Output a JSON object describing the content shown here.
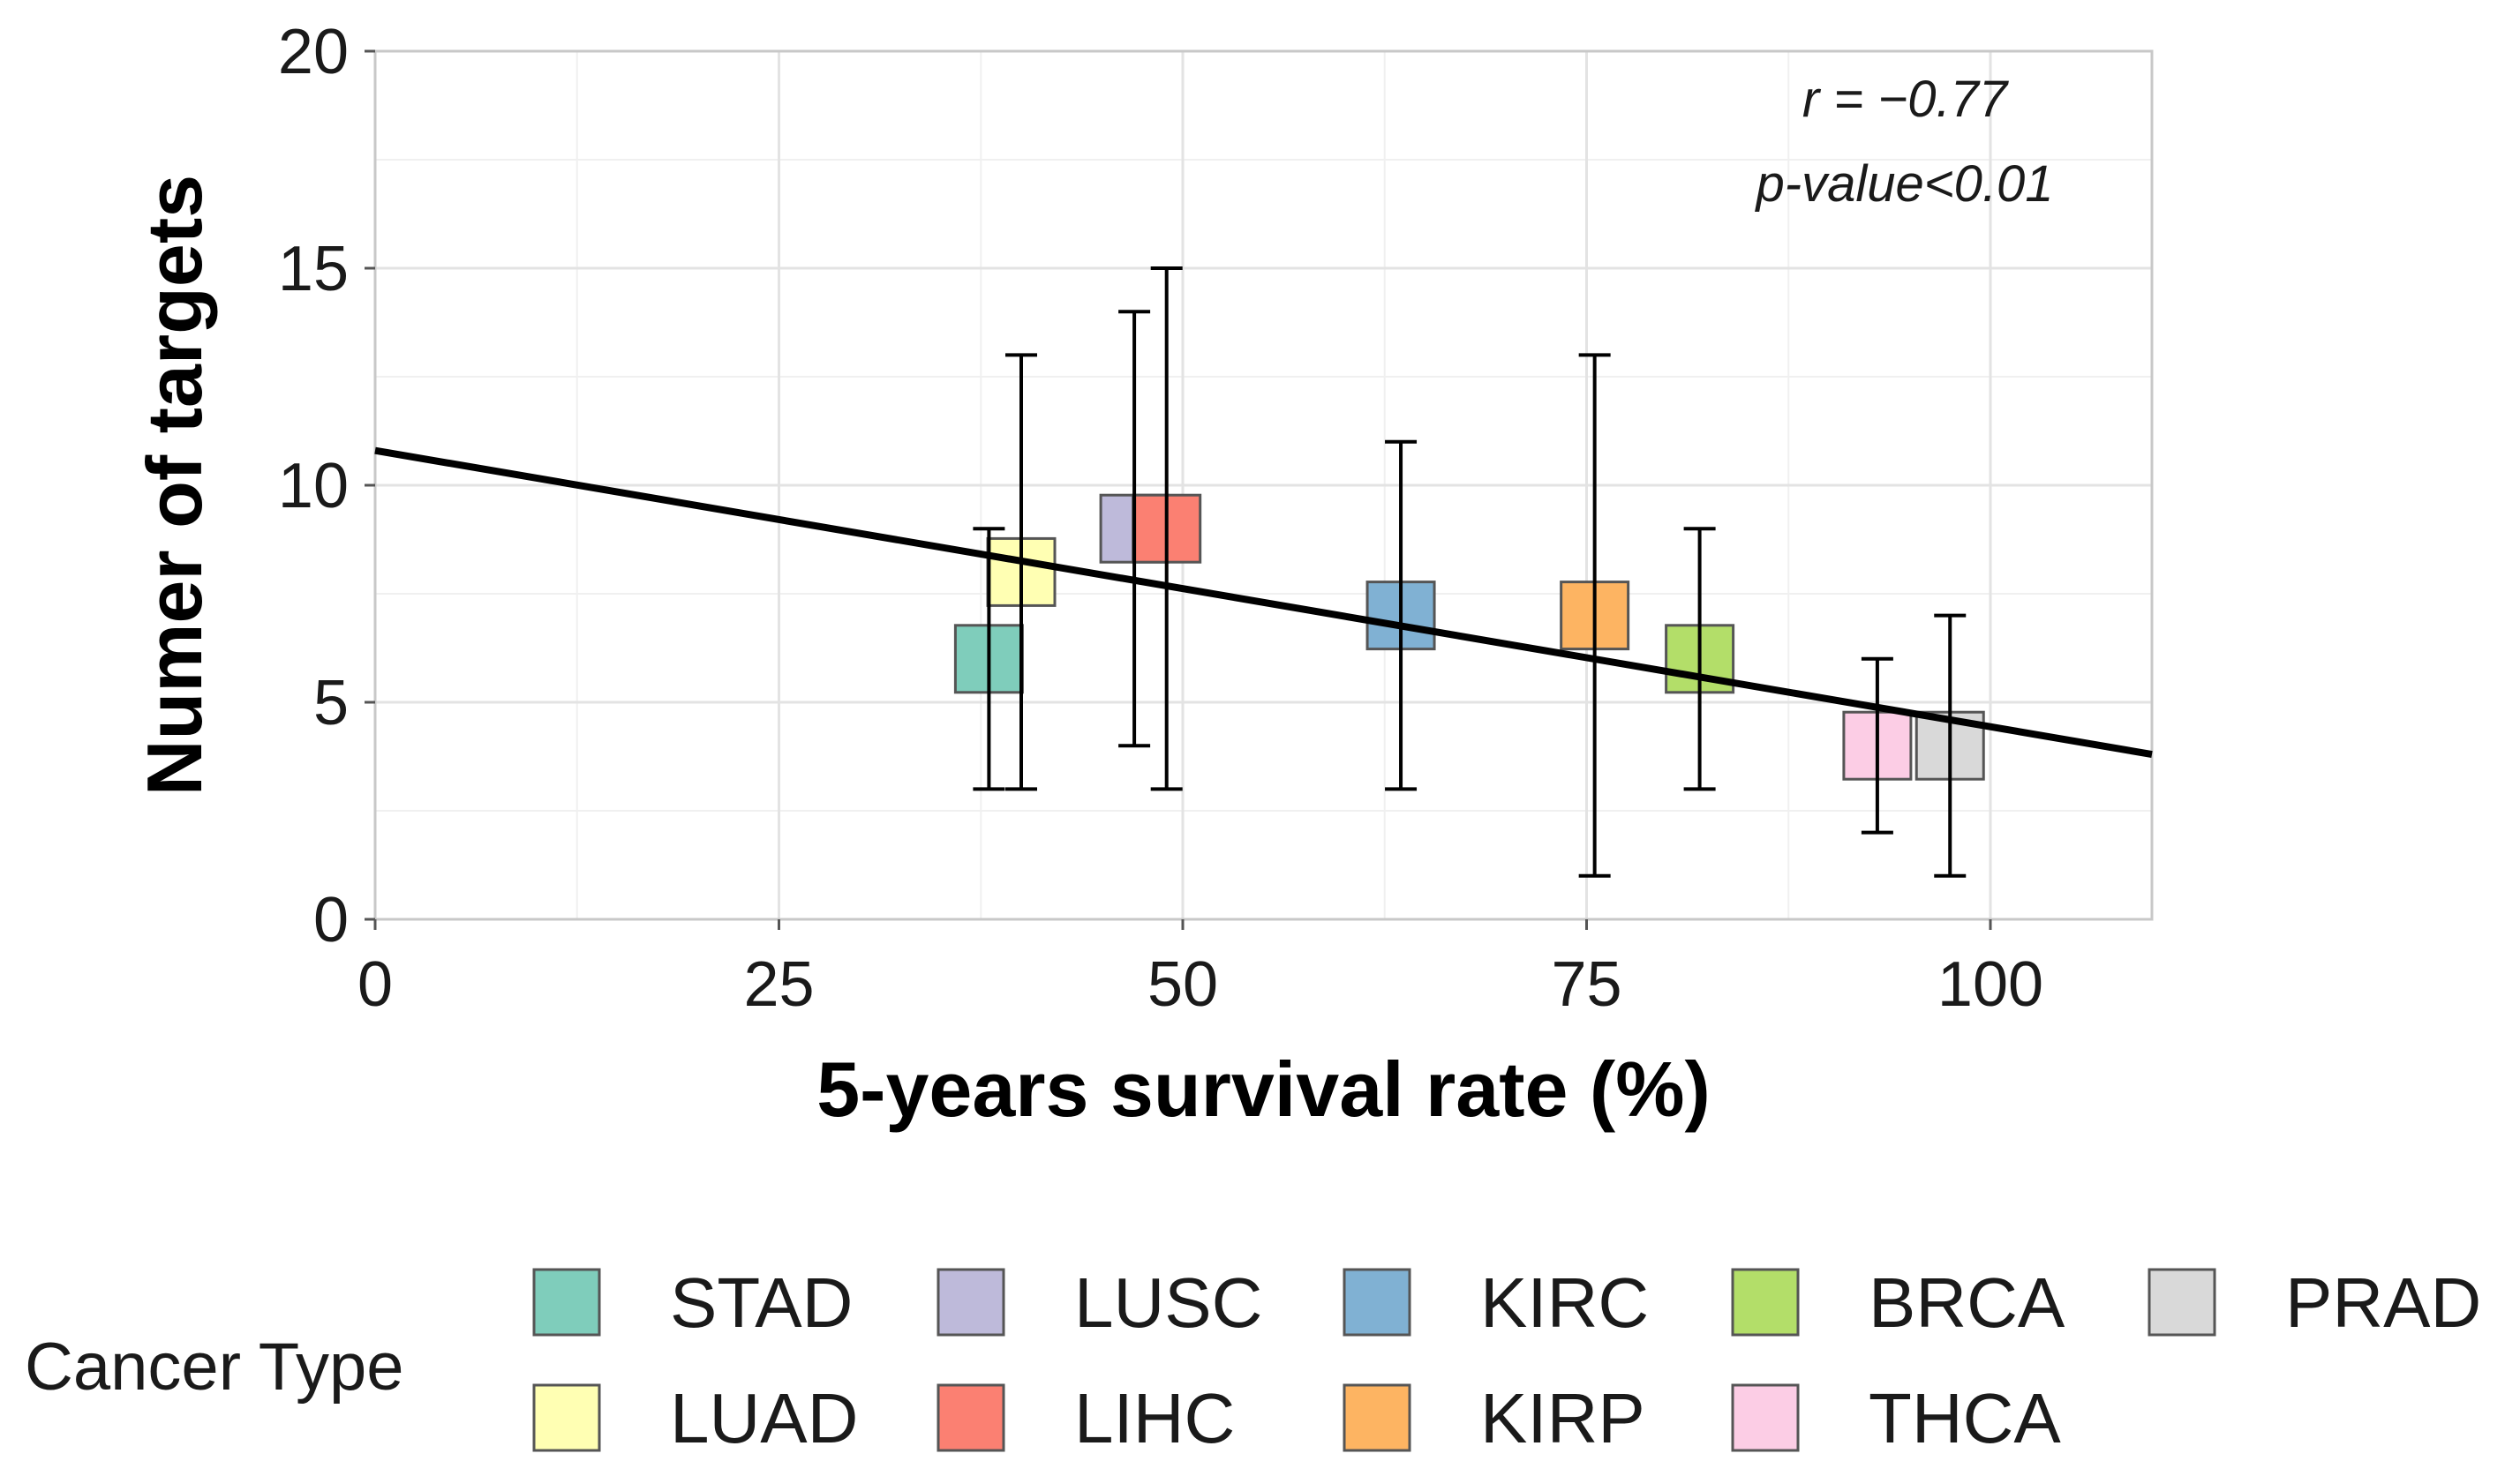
{
  "chart_data": {
    "type": "scatter",
    "title": "",
    "xlabel": "5-years survival rate (%)",
    "ylabel": "Numer of targets",
    "xlim": [
      0,
      110
    ],
    "ylim": [
      0,
      20
    ],
    "xticks": [
      0,
      25,
      50,
      75,
      100
    ],
    "yticks": [
      0,
      5,
      10,
      15,
      20
    ],
    "x_minor": [
      12.5,
      37.5,
      62.5,
      87.5
    ],
    "y_minor": [
      2.5,
      7.5,
      12.5,
      17.5
    ],
    "grid": true,
    "annotations": [
      "r = −0.77",
      "p-value<0.01"
    ],
    "regression": {
      "x": [
        0,
        110
      ],
      "y": [
        10.8,
        3.8
      ]
    },
    "points": [
      {
        "name": "STAD",
        "x": 38,
        "y": 6,
        "ymin": 3,
        "ymax": 9,
        "color": "#7fcdbb"
      },
      {
        "name": "LUAD",
        "x": 40,
        "y": 8,
        "ymin": 3,
        "ymax": 13,
        "color": "#ffffb3"
      },
      {
        "name": "LUSC",
        "x": 47,
        "y": 9,
        "ymin": 4,
        "ymax": 14,
        "color": "#bebada"
      },
      {
        "name": "LIHC",
        "x": 49,
        "y": 9,
        "ymin": 3,
        "ymax": 15,
        "color": "#fb8072"
      },
      {
        "name": "KIRC",
        "x": 63.5,
        "y": 7,
        "ymin": 3,
        "ymax": 11,
        "color": "#80b1d3"
      },
      {
        "name": "KIRP",
        "x": 75.5,
        "y": 7,
        "ymin": 1,
        "ymax": 13,
        "color": "#fdb462"
      },
      {
        "name": "BRCA",
        "x": 82,
        "y": 6,
        "ymin": 3,
        "ymax": 9,
        "color": "#b3de69"
      },
      {
        "name": "THCA",
        "x": 93,
        "y": 4,
        "ymin": 2,
        "ymax": 6,
        "color": "#fccde5"
      },
      {
        "name": "PRAD",
        "x": 97.5,
        "y": 4,
        "ymin": 1,
        "ymax": 7,
        "color": "#d9d9d9"
      }
    ],
    "legend": {
      "title": "Cancer Type",
      "position": "bottom",
      "items": [
        {
          "label": "STAD",
          "color": "#7fcdbb"
        },
        {
          "label": "LUAD",
          "color": "#ffffb3"
        },
        {
          "label": "LUSC",
          "color": "#bebada"
        },
        {
          "label": "LIHC",
          "color": "#fb8072"
        },
        {
          "label": "KIRC",
          "color": "#80b1d3"
        },
        {
          "label": "KIRP",
          "color": "#fdb462"
        },
        {
          "label": "BRCA",
          "color": "#b3de69"
        },
        {
          "label": "THCA",
          "color": "#fccde5"
        },
        {
          "label": "PRAD",
          "color": "#d9d9d9"
        }
      ]
    }
  }
}
